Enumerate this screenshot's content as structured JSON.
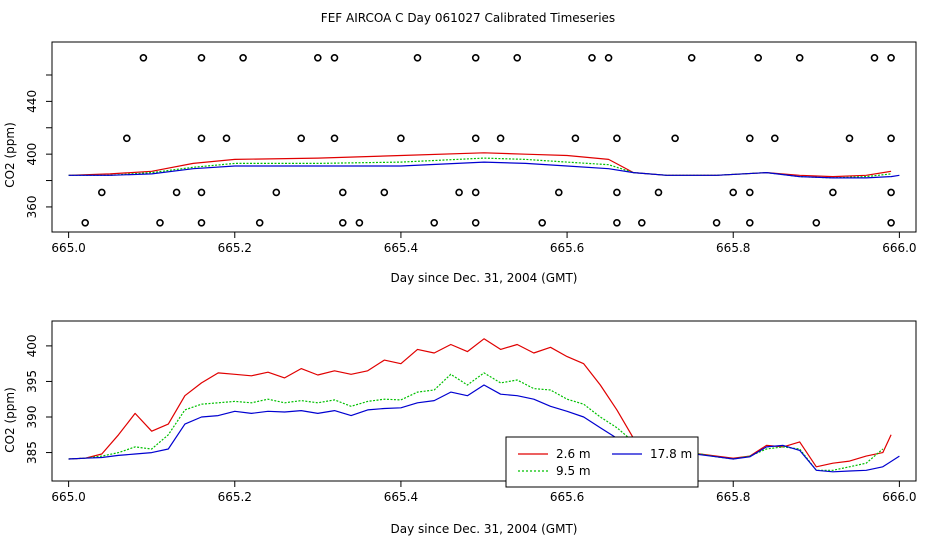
{
  "figure_title": "FEF AIRCOA C  Day 061027  Calibrated Timeseries",
  "colors": {
    "s1": "#e00000",
    "s2": "#00c000",
    "s3": "#0000d0",
    "axis": "#000000"
  },
  "chart_data": [
    {
      "type": "line",
      "xlabel": "Day since Dec. 31, 2004 (GMT)",
      "ylabel": "CO2 (ppm)",
      "xlim": [
        664.98,
        666.02
      ],
      "ylim": [
        341,
        485
      ],
      "xticks": [
        665.0,
        665.2,
        665.4,
        665.6,
        665.8,
        666.0
      ],
      "xtick_labels": [
        "665.0",
        "665.2",
        "665.4",
        "665.6",
        "665.8",
        "666.0"
      ],
      "yticks": [
        360,
        380,
        400,
        420,
        440,
        460
      ],
      "ytick_labels": [
        "360",
        "",
        "400",
        "",
        "440",
        ""
      ],
      "series": [
        {
          "name": "2.6 m",
          "color": "#e00000",
          "x": [
            665.0,
            665.05,
            665.1,
            665.15,
            665.2,
            665.3,
            665.4,
            665.5,
            665.55,
            665.6,
            665.65,
            665.68,
            665.72,
            665.78,
            665.84,
            665.88,
            665.92,
            665.96,
            665.99
          ],
          "y": [
            384,
            385,
            387,
            393,
            396,
            397,
            399,
            401,
            400,
            399,
            396,
            386,
            384,
            384,
            386,
            384,
            383,
            384,
            387
          ]
        },
        {
          "name": "9.5 m",
          "color": "#00c000",
          "x": [
            665.0,
            665.05,
            665.1,
            665.15,
            665.2,
            665.3,
            665.4,
            665.5,
            665.55,
            665.6,
            665.65,
            665.68,
            665.72,
            665.78,
            665.84,
            665.88,
            665.92,
            665.96,
            665.99
          ],
          "y": [
            384,
            384,
            386,
            390,
            393,
            393,
            394,
            397,
            396,
            394,
            392,
            386,
            384,
            384,
            386,
            383,
            382,
            383,
            385
          ]
        },
        {
          "name": "17.8 m",
          "color": "#0000d0",
          "x": [
            665.0,
            665.05,
            665.1,
            665.15,
            665.2,
            665.3,
            665.4,
            665.5,
            665.55,
            665.6,
            665.65,
            665.68,
            665.72,
            665.78,
            665.84,
            665.88,
            665.92,
            665.96,
            665.99,
            666.0
          ],
          "y": [
            384,
            384,
            385,
            389,
            391,
            391,
            391,
            394,
            393,
            391,
            389,
            386,
            384,
            384,
            386,
            383,
            382,
            382,
            383,
            384
          ]
        }
      ],
      "calibration_points": {
        "x": [
          665.09,
          665.16,
          665.21,
          665.3,
          665.32,
          665.42,
          665.49,
          665.54,
          665.63,
          665.65,
          665.75,
          665.83,
          665.88,
          665.97,
          665.99,
          665.07,
          665.16,
          665.19,
          665.28,
          665.32,
          665.4,
          665.49,
          665.52,
          665.61,
          665.66,
          665.73,
          665.82,
          665.85,
          665.94,
          665.99,
          665.04,
          665.13,
          665.16,
          665.25,
          665.33,
          665.38,
          665.47,
          665.49,
          665.59,
          665.66,
          665.71,
          665.8,
          665.82,
          665.92,
          665.99,
          665.02,
          665.11,
          665.16,
          665.23,
          665.33,
          665.35,
          665.44,
          665.49,
          665.57,
          665.66,
          665.69,
          665.78,
          665.82,
          665.9,
          665.99
        ],
        "y": [
          473,
          473,
          473,
          473,
          473,
          473,
          473,
          473,
          473,
          473,
          473,
          473,
          473,
          473,
          473,
          412,
          412,
          412,
          412,
          412,
          412,
          412,
          412,
          412,
          412,
          412,
          412,
          412,
          412,
          412,
          371,
          371,
          371,
          371,
          371,
          371,
          371,
          371,
          371,
          371,
          371,
          371,
          371,
          371,
          371,
          348,
          348,
          348,
          348,
          348,
          348,
          348,
          348,
          348,
          348,
          348,
          348,
          348,
          348,
          348
        ]
      }
    },
    {
      "type": "line",
      "xlabel": "Day since Dec. 31, 2004 (GMT)",
      "ylabel": "CO2 (ppm)",
      "xlim": [
        664.98,
        666.02
      ],
      "ylim": [
        381,
        403.5
      ],
      "xticks": [
        665.0,
        665.2,
        665.4,
        665.6,
        665.8,
        666.0
      ],
      "xtick_labels": [
        "665.0",
        "665.2",
        "665.4",
        "665.6",
        "665.8",
        "666.0"
      ],
      "yticks": [
        385,
        390,
        395,
        400
      ],
      "ytick_labels": [
        "385",
        "390",
        "395",
        "400"
      ],
      "legend_position": "bottom-center",
      "series": [
        {
          "name": "2.6 m",
          "color": "#e00000",
          "x": [
            665.0,
            665.02,
            665.04,
            665.06,
            665.08,
            665.1,
            665.12,
            665.14,
            665.16,
            665.18,
            665.2,
            665.22,
            665.24,
            665.26,
            665.28,
            665.3,
            665.32,
            665.34,
            665.36,
            665.38,
            665.4,
            665.42,
            665.44,
            665.46,
            665.48,
            665.5,
            665.52,
            665.54,
            665.56,
            665.58,
            665.6,
            665.62,
            665.64,
            665.66,
            665.68,
            665.7,
            665.72,
            665.74,
            665.76,
            665.78,
            665.8,
            665.82,
            665.84,
            665.86,
            665.88,
            665.9,
            665.92,
            665.94,
            665.96,
            665.98,
            665.99
          ],
          "y": [
            384.1,
            384.2,
            384.8,
            387.5,
            390.5,
            388.0,
            389.0,
            393.0,
            394.8,
            396.2,
            396.0,
            395.8,
            396.3,
            395.5,
            396.8,
            395.9,
            396.5,
            396.0,
            396.5,
            398.0,
            397.5,
            399.5,
            399.0,
            400.2,
            399.2,
            401.0,
            399.5,
            400.2,
            399.0,
            399.8,
            398.5,
            397.5,
            394.5,
            391.0,
            387.0,
            384.5,
            384.8,
            385.0,
            384.8,
            384.5,
            384.2,
            384.5,
            386.0,
            385.8,
            386.5,
            383.0,
            383.5,
            383.8,
            384.5,
            385.0,
            387.5
          ]
        },
        {
          "name": "9.5 m",
          "color": "#00c000",
          "x": [
            665.0,
            665.02,
            665.04,
            665.06,
            665.08,
            665.1,
            665.12,
            665.14,
            665.16,
            665.18,
            665.2,
            665.22,
            665.24,
            665.26,
            665.28,
            665.3,
            665.32,
            665.34,
            665.36,
            665.38,
            665.4,
            665.42,
            665.44,
            665.46,
            665.48,
            665.5,
            665.52,
            665.54,
            665.56,
            665.58,
            665.6,
            665.62,
            665.64,
            665.66,
            665.68,
            665.7,
            665.72,
            665.74,
            665.76,
            665.78,
            665.8,
            665.82,
            665.84,
            665.86,
            665.88,
            665.9,
            665.92,
            665.94,
            665.96,
            665.98
          ],
          "y": [
            384.1,
            384.2,
            384.5,
            385.0,
            385.8,
            385.5,
            387.5,
            391.0,
            391.8,
            392.0,
            392.2,
            392.0,
            392.5,
            392.0,
            392.3,
            392.0,
            392.4,
            391.5,
            392.2,
            392.5,
            392.4,
            393.5,
            393.8,
            396.0,
            394.5,
            396.2,
            394.8,
            395.2,
            394.0,
            393.8,
            392.5,
            391.8,
            390.0,
            388.5,
            386.5,
            385.0,
            385.0,
            385.1,
            384.8,
            384.4,
            384.1,
            384.5,
            385.5,
            385.8,
            385.5,
            382.5,
            382.5,
            383.0,
            383.5,
            385.5
          ]
        },
        {
          "name": "17.8 m",
          "color": "#0000d0",
          "x": [
            665.0,
            665.02,
            665.04,
            665.06,
            665.08,
            665.1,
            665.12,
            665.14,
            665.16,
            665.18,
            665.2,
            665.22,
            665.24,
            665.26,
            665.28,
            665.3,
            665.32,
            665.34,
            665.36,
            665.38,
            665.4,
            665.42,
            665.44,
            665.46,
            665.48,
            665.5,
            665.52,
            665.54,
            665.56,
            665.58,
            665.6,
            665.62,
            665.64,
            665.66,
            665.68,
            665.7,
            665.72,
            665.74,
            665.76,
            665.78,
            665.8,
            665.82,
            665.84,
            665.86,
            665.88,
            665.9,
            665.92,
            665.94,
            665.96,
            665.98,
            666.0
          ],
          "y": [
            384.1,
            384.2,
            384.3,
            384.6,
            384.8,
            385.0,
            385.5,
            389.0,
            390.0,
            390.2,
            390.8,
            390.5,
            390.8,
            390.7,
            390.9,
            390.5,
            390.9,
            390.2,
            391.0,
            391.2,
            391.3,
            392.0,
            392.3,
            393.5,
            393.0,
            394.5,
            393.2,
            393.0,
            392.5,
            391.5,
            390.8,
            390.0,
            388.5,
            387.0,
            385.5,
            384.8,
            384.9,
            385.0,
            384.7,
            384.4,
            384.1,
            384.4,
            385.8,
            386.0,
            385.3,
            382.5,
            382.3,
            382.4,
            382.5,
            383.0,
            384.5
          ]
        }
      ]
    }
  ]
}
